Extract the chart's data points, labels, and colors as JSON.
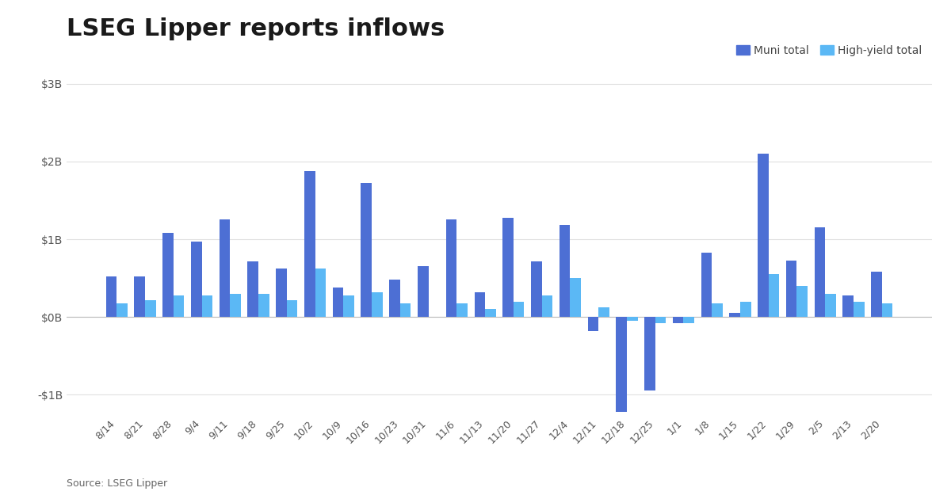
{
  "title": "LSEG Lipper reports inflows",
  "source": "Source: LSEG Lipper",
  "categories": [
    "8/14",
    "8/21",
    "8/28",
    "9/4",
    "9/11",
    "9/18",
    "9/25",
    "10/2",
    "10/9",
    "10/16",
    "10/23",
    "10/31",
    "11/6",
    "11/13",
    "11/20",
    "11/27",
    "12/4",
    "12/11",
    "12/18",
    "12/25",
    "1/1",
    "1/8",
    "1/15",
    "1/22",
    "1/29",
    "2/5",
    "2/13",
    "2/20"
  ],
  "muni_total": [
    0.52,
    0.52,
    1.08,
    0.97,
    1.25,
    0.72,
    0.62,
    1.88,
    0.38,
    1.72,
    0.48,
    0.65,
    1.25,
    0.32,
    1.28,
    0.72,
    1.18,
    -0.18,
    -1.22,
    -0.95,
    -0.08,
    0.83,
    0.05,
    2.1,
    0.73,
    1.15,
    0.28,
    0.58
  ],
  "hy_total": [
    0.18,
    0.22,
    0.28,
    0.28,
    0.3,
    0.3,
    0.22,
    0.62,
    0.28,
    0.32,
    0.18,
    0.0,
    0.18,
    0.1,
    0.2,
    0.28,
    0.5,
    0.12,
    -0.05,
    -0.08,
    -0.08,
    0.18,
    0.2,
    0.55,
    0.4,
    0.3,
    0.2,
    0.18
  ],
  "muni_color": "#4d6fd4",
  "hy_color": "#5bb8f5",
  "ylim": [
    -1.25,
    3.05
  ],
  "yticks": [
    -1.0,
    0.0,
    1.0,
    2.0,
    3.0
  ],
  "ytick_labels": [
    "-$1B",
    "$0B",
    "$1B",
    "$2B",
    "$3B"
  ],
  "background_color": "#ffffff",
  "title_fontsize": 22,
  "legend_labels": [
    "Muni total",
    "High-yield total"
  ],
  "bar_width": 0.38,
  "grid_color": "#e0e0e0"
}
